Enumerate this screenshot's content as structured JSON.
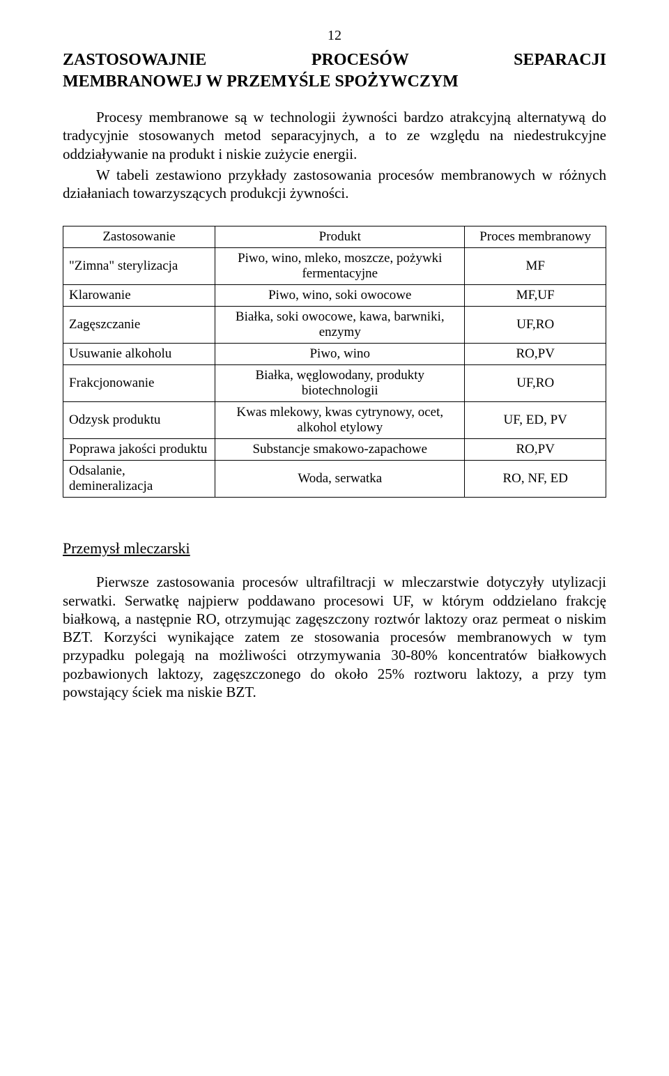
{
  "page_number": "12",
  "title_line1": "ZASTOSOWAJNIE PROCESÓW SEPARACJI",
  "title_line2": "MEMBRANOWEJ W PRZEMYŚLE SPOŻYWCZYM",
  "intro_para1": "Procesy membranowe są w technologii żywności bardzo atrakcyjną alternatywą do tradycyjnie stosowanych metod separacyjnych, a to ze względu na niedestrukcyjne oddziaływanie na produkt i niskie zużycie energii.",
  "intro_para2": "W tabeli zestawiono przykłady zastosowania procesów membranowych w różnych działaniach towarzyszących produkcji żywności.",
  "table": {
    "headers": [
      "Zastosowanie",
      "Produkt",
      "Proces membranowy"
    ],
    "rows": [
      [
        "\"Zimna\" sterylizacja",
        "Piwo, wino, mleko, moszcze, pożywki fermentacyjne",
        "MF"
      ],
      [
        "Klarowanie",
        "Piwo, wino, soki owocowe",
        "MF,UF"
      ],
      [
        "Zagęszczanie",
        "Białka, soki owocowe, kawa, barwniki, enzymy",
        "UF,RO"
      ],
      [
        "Usuwanie alkoholu",
        "Piwo, wino",
        "RO,PV"
      ],
      [
        "Frakcjonowanie",
        "Białka, węglowodany, produkty biotechnologii",
        "UF,RO"
      ],
      [
        "Odzysk produktu",
        "Kwas mlekowy, kwas cytrynowy, ocet, alkohol etylowy",
        "UF, ED, PV"
      ],
      [
        "Poprawa jakości produktu",
        "Substancje smakowo-zapachowe",
        "RO,PV"
      ],
      [
        "Odsalanie, demineralizacja",
        "Woda, serwatka",
        "RO, NF, ED"
      ]
    ],
    "col_widths": [
      "28%",
      "46%",
      "26%"
    ]
  },
  "section_heading": "Przemysł mleczarski",
  "body": "Pierwsze zastosowania procesów ultrafiltracji w mleczarstwie dotyczyły utylizacji serwatki. Serwatkę najpierw poddawano procesowi UF, w którym oddzielano frakcję białkową, a następnie RO, otrzymując zagęszczony roztwór laktozy oraz permeat o niskim BZT. Korzyści wynikające zatem ze stosowania procesów membranowych w tym przypadku polegają na możliwości otrzymywania 30-80% koncentratów białkowych pozbawionych laktozy, zagęszczonego do około 25% roztworu laktozy, a przy tym powstający ściek ma niskie BZT.",
  "colors": {
    "text": "#000000",
    "background": "#ffffff",
    "border": "#000000"
  },
  "fonts": {
    "family": "Times New Roman",
    "body_size_pt": 16,
    "title_size_pt": 18
  }
}
